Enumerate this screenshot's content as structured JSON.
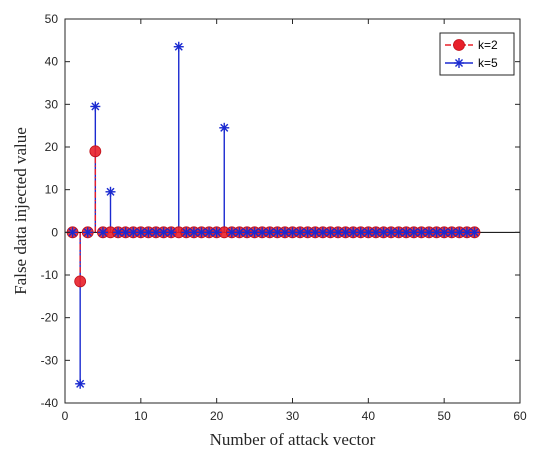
{
  "chart_data": {
    "type": "stem",
    "title": "",
    "xlabel": "Number of attack vector",
    "ylabel": "False data injected value",
    "xlim": [
      0,
      60
    ],
    "ylim": [
      -40,
      50
    ],
    "xticks": [
      0,
      10,
      20,
      30,
      40,
      50,
      60
    ],
    "yticks": [
      -40,
      -30,
      -20,
      -10,
      0,
      10,
      20,
      30,
      40,
      50
    ],
    "xtick_labels": [
      "0",
      "10",
      "20",
      "30",
      "40",
      "50",
      "60"
    ],
    "ytick_labels": [
      "-40",
      "-30",
      "-20",
      "-10",
      "0",
      "10",
      "20",
      "30",
      "40",
      "50"
    ],
    "baseline": 0,
    "grid": false,
    "legend_position": "top-right",
    "series": [
      {
        "name": "k=2",
        "color": "#e8202a",
        "marker": "filled-circle",
        "line_style": "dash-dot",
        "x": [
          1,
          2,
          3,
          4,
          5,
          6,
          7,
          8,
          9,
          10,
          11,
          12,
          13,
          14,
          15,
          16,
          17,
          18,
          19,
          20,
          21,
          22,
          23,
          24,
          25,
          26,
          27,
          28,
          29,
          30,
          31,
          32,
          33,
          34,
          35,
          36,
          37,
          38,
          39,
          40,
          41,
          42,
          43,
          44,
          45,
          46,
          47,
          48,
          49,
          50,
          51,
          52,
          53,
          54
        ],
        "values": [
          0,
          -11.5,
          0,
          19,
          0,
          0,
          0,
          0,
          0,
          0,
          0,
          0,
          0,
          0,
          0,
          0,
          0,
          0,
          0,
          0,
          0,
          0,
          0,
          0,
          0,
          0,
          0,
          0,
          0,
          0,
          0,
          0,
          0,
          0,
          0,
          0,
          0,
          0,
          0,
          0,
          0,
          0,
          0,
          0,
          0,
          0,
          0,
          0,
          0,
          0,
          0,
          0,
          0,
          0
        ]
      },
      {
        "name": "k=5",
        "color": "#1a2ad0",
        "marker": "asterisk",
        "line_style": "solid",
        "x": [
          1,
          2,
          3,
          4,
          5,
          6,
          7,
          8,
          9,
          10,
          11,
          12,
          13,
          14,
          15,
          16,
          17,
          18,
          19,
          20,
          21,
          22,
          23,
          24,
          25,
          26,
          27,
          28,
          29,
          30,
          31,
          32,
          33,
          34,
          35,
          36,
          37,
          38,
          39,
          40,
          41,
          42,
          43,
          44,
          45,
          46,
          47,
          48,
          49,
          50,
          51,
          52,
          53,
          54
        ],
        "values": [
          0,
          -35.5,
          0,
          29.5,
          0,
          9.5,
          0,
          0,
          0,
          0,
          0,
          0,
          0,
          0,
          43.5,
          0,
          0,
          0,
          0,
          0,
          24.5,
          0,
          0,
          0,
          0,
          0,
          0,
          0,
          0,
          0,
          0,
          0,
          0,
          0,
          0,
          0,
          0,
          0,
          0,
          0,
          0,
          0,
          0,
          0,
          0,
          0,
          0,
          0,
          0,
          0,
          0,
          0,
          0,
          0
        ]
      }
    ]
  }
}
